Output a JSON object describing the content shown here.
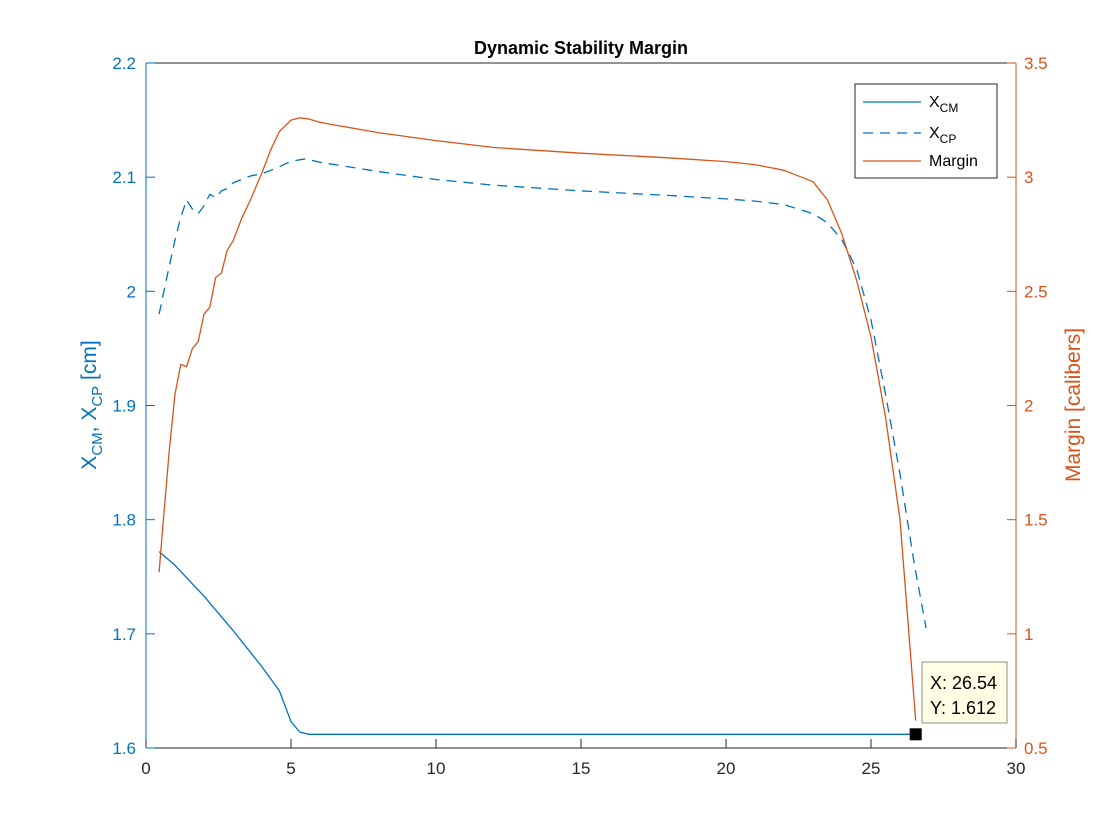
{
  "chart_data": {
    "type": "line",
    "title": "Dynamic Stability Margin",
    "xlabel": "",
    "ylabel_left": {
      "base1": "X",
      "sub1": "CM",
      "sep": ", ",
      "base2": "X",
      "sub2": "CP",
      "unit": " [cm]"
    },
    "ylabel_right": "Margin [calibers]",
    "xlim": [
      0,
      30
    ],
    "ylim_left": [
      1.6,
      2.2
    ],
    "ylim_right": [
      0.5,
      3.5
    ],
    "xticks": [
      "0",
      "5",
      "10",
      "15",
      "20",
      "25",
      "30"
    ],
    "yticks_left": [
      "1.6",
      "1.7",
      "1.8",
      "1.9",
      "2",
      "2.1",
      "2.2"
    ],
    "yticks_right": [
      "0.5",
      "1",
      "1.5",
      "2",
      "2.5",
      "3",
      "3.5"
    ],
    "grid": false,
    "legend_position": "top-right",
    "colors": {
      "blue": "#0072BD",
      "orange": "#D95319"
    },
    "series": [
      {
        "name": "X_CM",
        "label_base": "X",
        "label_sub": "CM",
        "axis": "left",
        "style": "solid",
        "color": "#0072BD",
        "x": [
          0.45,
          1.0,
          2.0,
          3.0,
          4.0,
          4.6,
          5.0,
          5.3,
          5.6,
          10,
          15,
          20,
          25,
          26.54
        ],
        "y": [
          1.772,
          1.76,
          1.733,
          1.703,
          1.671,
          1.65,
          1.623,
          1.614,
          1.612,
          1.612,
          1.612,
          1.612,
          1.612,
          1.612
        ]
      },
      {
        "name": "X_CP",
        "label_base": "X",
        "label_sub": "CP",
        "axis": "left",
        "style": "dashed",
        "color": "#0072BD",
        "x": [
          0.45,
          0.7,
          1.0,
          1.2,
          1.4,
          1.6,
          1.8,
          2.0,
          2.2,
          2.4,
          2.6,
          2.8,
          3.0,
          3.3,
          3.6,
          4.0,
          4.5,
          5.0,
          5.5,
          6,
          8,
          10,
          12,
          15,
          18,
          20,
          21,
          22,
          23,
          23.5,
          24,
          24.5,
          25,
          25.5,
          26,
          26.5,
          26.9
        ],
        "y": [
          1.98,
          2.01,
          2.045,
          2.065,
          2.08,
          2.072,
          2.068,
          2.075,
          2.085,
          2.082,
          2.088,
          2.09,
          2.095,
          2.098,
          2.101,
          2.103,
          2.108,
          2.114,
          2.116,
          2.113,
          2.105,
          2.098,
          2.093,
          2.088,
          2.084,
          2.081,
          2.079,
          2.076,
          2.068,
          2.06,
          2.045,
          2.02,
          1.975,
          1.91,
          1.84,
          1.76,
          1.705
        ]
      },
      {
        "name": "Margin",
        "label_base": "Margin",
        "label_sub": "",
        "axis": "right",
        "style": "solid",
        "color": "#D95319",
        "x": [
          0.45,
          0.6,
          0.8,
          1.0,
          1.2,
          1.4,
          1.6,
          1.8,
          2.0,
          2.2,
          2.4,
          2.6,
          2.8,
          3.0,
          3.3,
          3.6,
          4.0,
          4.3,
          4.6,
          5.0,
          5.3,
          5.6,
          6,
          8,
          10,
          12,
          15,
          18,
          20,
          21,
          22,
          23,
          23.5,
          24,
          24.5,
          25,
          25.5,
          26,
          26.54
        ],
        "y": [
          1.27,
          1.5,
          1.8,
          2.05,
          2.18,
          2.17,
          2.25,
          2.28,
          2.4,
          2.43,
          2.56,
          2.58,
          2.68,
          2.72,
          2.82,
          2.9,
          3.02,
          3.12,
          3.2,
          3.25,
          3.26,
          3.255,
          3.24,
          3.195,
          3.16,
          3.13,
          3.105,
          3.085,
          3.068,
          3.055,
          3.03,
          2.98,
          2.9,
          2.75,
          2.55,
          2.3,
          1.95,
          1.5,
          0.62
        ]
      }
    ],
    "datatip": {
      "x_text": "X: 26.54",
      "y_text": "Y: 1.612",
      "x": 26.54,
      "y": 1.612,
      "axis": "left"
    }
  }
}
